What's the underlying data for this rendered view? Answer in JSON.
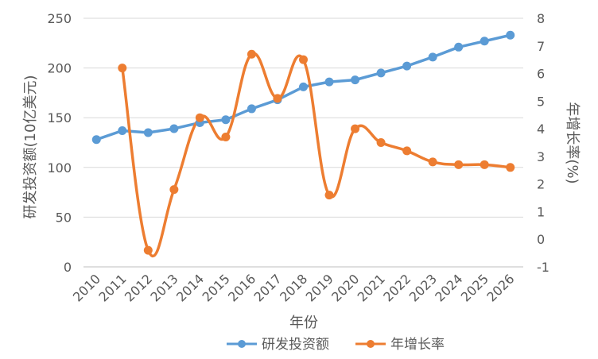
{
  "chart_data": {
    "type": "line",
    "x": [
      "2010",
      "2011",
      "2012",
      "2013",
      "2014",
      "2015",
      "2016",
      "2017",
      "2018",
      "2019",
      "2020",
      "2021",
      "2022",
      "2023",
      "2024",
      "2025",
      "2026"
    ],
    "xlabel": "年份",
    "ylabel": "研发投资额(10亿美元)",
    "ylabel2": "年增长率(%)",
    "ylim": [
      0,
      250
    ],
    "ylim2": [
      -1,
      8
    ],
    "yticks": [
      "0",
      "50",
      "100",
      "150",
      "200",
      "250"
    ],
    "yticks2": [
      "-1",
      "0",
      "1",
      "2",
      "3",
      "4",
      "5",
      "6",
      "7",
      "8"
    ],
    "grid": true,
    "legend_position": "bottom",
    "series": [
      {
        "name": "研发投资额",
        "axis": "left",
        "color": "#5b9bd5",
        "smooth": false,
        "values": [
          128,
          137,
          135,
          139,
          145,
          148,
          159,
          168,
          181,
          186,
          188,
          195,
          202,
          211,
          221,
          227,
          233
        ]
      },
      {
        "name": "年增长率",
        "axis": "right",
        "color": "#ed7d31",
        "smooth": true,
        "values": [
          null,
          6.2,
          -0.4,
          1.8,
          4.4,
          3.7,
          6.7,
          5.1,
          6.5,
          1.6,
          4.0,
          3.5,
          3.2,
          2.8,
          2.7,
          2.7,
          2.6
        ]
      }
    ]
  }
}
